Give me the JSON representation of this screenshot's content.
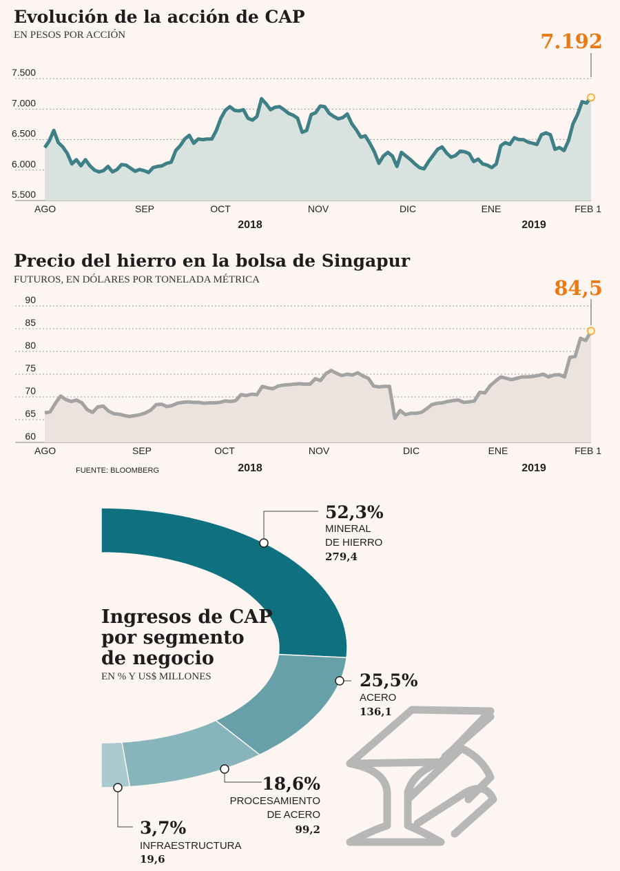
{
  "chart_data": [
    {
      "type": "area",
      "title": "Evolución de la acción de CAP",
      "subtitle": "EN PESOS POR ACCIÓN",
      "yticks": [
        "7.500",
        "7.000",
        "6.500",
        "6.000",
        "5.500"
      ],
      "ytick_values": [
        7500,
        7000,
        6500,
        6000,
        5500
      ],
      "ylim": [
        5500,
        7750
      ],
      "xlabels": [
        "AGO",
        "SEP",
        "OCT",
        "NOV",
        "DIC",
        "ENE",
        "FEB 1"
      ],
      "years": [
        "2018",
        "2019"
      ],
      "grid": true,
      "last_value_label": "7.192",
      "series": [
        {
          "values": [
            6370,
            6480,
            6650,
            6450,
            6380,
            6270,
            6100,
            6170,
            6070,
            6170,
            6070,
            6000,
            5970,
            5990,
            6060,
            5970,
            6010,
            6090,
            6080,
            6030,
            5980,
            6010,
            5990,
            5960,
            6040,
            6060,
            6070,
            6110,
            6130,
            6320,
            6400,
            6510,
            6570,
            6440,
            6510,
            6500,
            6510,
            6510,
            6650,
            6850,
            6980,
            7040,
            6980,
            6970,
            6990,
            6850,
            6820,
            6880,
            7170,
            7090,
            6990,
            7030,
            7040,
            6990,
            6930,
            6900,
            6850,
            6620,
            6650,
            6910,
            6940,
            7050,
            7040,
            6930,
            6880,
            6840,
            6860,
            6920,
            6760,
            6660,
            6540,
            6560,
            6440,
            6300,
            6110,
            6230,
            6290,
            6230,
            6060,
            6290,
            6230,
            6170,
            6100,
            6040,
            6020,
            6140,
            6240,
            6340,
            6380,
            6280,
            6210,
            6240,
            6310,
            6300,
            6270,
            6140,
            6180,
            6100,
            6080,
            6040,
            6100,
            6400,
            6450,
            6420,
            6530,
            6500,
            6500,
            6460,
            6440,
            6420,
            6580,
            6610,
            6580,
            6340,
            6370,
            6320,
            6480,
            6760,
            6910,
            7120,
            7100,
            7192
          ]
        }
      ]
    },
    {
      "type": "area",
      "title": "Precio del hierro en la bolsa de Singapur",
      "subtitle": "FUTUROS, EN DÓLARES POR TONELADA MÉTRICA",
      "yticks": [
        "90",
        "85",
        "80",
        "75",
        "70",
        "65",
        "60"
      ],
      "ytick_values": [
        90,
        85,
        80,
        75,
        70,
        65,
        60
      ],
      "ylim": [
        60,
        90
      ],
      "xlabels": [
        "AGO",
        "SEP",
        "OCT",
        "NOV",
        "DIC",
        "ENE",
        "FEB 1"
      ],
      "years": [
        "2018",
        "2019"
      ],
      "grid": true,
      "last_value_label": "84,5",
      "source": "FUENTE: BLOOMBERG",
      "series": [
        {
          "values": [
            66.5,
            66.7,
            68.6,
            70.2,
            69.4,
            69.0,
            69.3,
            68.7,
            67.2,
            66.6,
            67.8,
            68.0,
            66.9,
            66.3,
            66.2,
            65.9,
            65.7,
            65.9,
            66.1,
            66.5,
            67.1,
            68.3,
            68.4,
            67.9,
            68.1,
            68.6,
            68.8,
            68.9,
            68.8,
            68.8,
            68.6,
            68.7,
            68.7,
            68.8,
            69.1,
            69.0,
            69.2,
            70.5,
            70.3,
            70.6,
            70.5,
            72.3,
            72.0,
            71.8,
            72.4,
            72.6,
            72.7,
            72.8,
            72.9,
            72.8,
            72.8,
            74.0,
            73.6,
            75.1,
            75.8,
            75.2,
            74.7,
            75.0,
            74.8,
            75.3,
            74.6,
            74.1,
            72.4,
            72.2,
            72.3,
            72.3,
            65.3,
            67.0,
            66.1,
            66.4,
            66.4,
            66.6,
            67.4,
            68.3,
            68.6,
            68.7,
            69.0,
            69.2,
            69.3,
            68.8,
            68.9,
            69.1,
            71.0,
            70.9,
            72.5,
            73.5,
            74.4,
            74.1,
            73.8,
            74.1,
            74.4,
            74.4,
            74.5,
            74.7,
            75.0,
            74.4,
            74.8,
            74.9,
            74.4,
            78.7,
            78.9,
            82.9,
            82.4,
            84.5
          ]
        }
      ]
    },
    {
      "type": "pie",
      "title": "Ingresos de CAP por segmento de negocio",
      "subtitle": "EN % Y US$ MILLONES",
      "slices": [
        {
          "label": "MINERAL DE HIERRO",
          "pct": 52.3,
          "pct_text": "52,3%",
          "amount": "279,4",
          "color": "#0f7080"
        },
        {
          "label": "ACERO",
          "pct": 25.5,
          "pct_text": "25,5%",
          "amount": "136,1",
          "color": "#68a0a9"
        },
        {
          "label": "PROCESAMIENTO DE ACERO",
          "pct": 18.6,
          "pct_text": "18,6%",
          "amount": "99,2",
          "color": "#88b4bb"
        },
        {
          "label": "INFRAESTRUCTURA",
          "pct": 3.7,
          "pct_text": "3,7%",
          "amount": "19,6",
          "color": "#a9cbd0"
        }
      ]
    }
  ],
  "ui": {
    "label_lines": {
      "mineral": [
        "MINERAL",
        "DE HIERRO"
      ],
      "procesamiento": [
        "PROCESAMIENTO",
        "DE ACERO"
      ],
      "donut_title": [
        "Ingresos de CAP",
        "por segmento",
        "de negocio"
      ]
    },
    "colors": {
      "line1": "#3f7f86",
      "fill1": "#d8e3df",
      "line2": "#a3a3a3",
      "fill2": "#ece3de",
      "highlight": "#ec7a12",
      "background": "#fcf5f1"
    },
    "icon": "steel-beam-anvil-icon"
  }
}
